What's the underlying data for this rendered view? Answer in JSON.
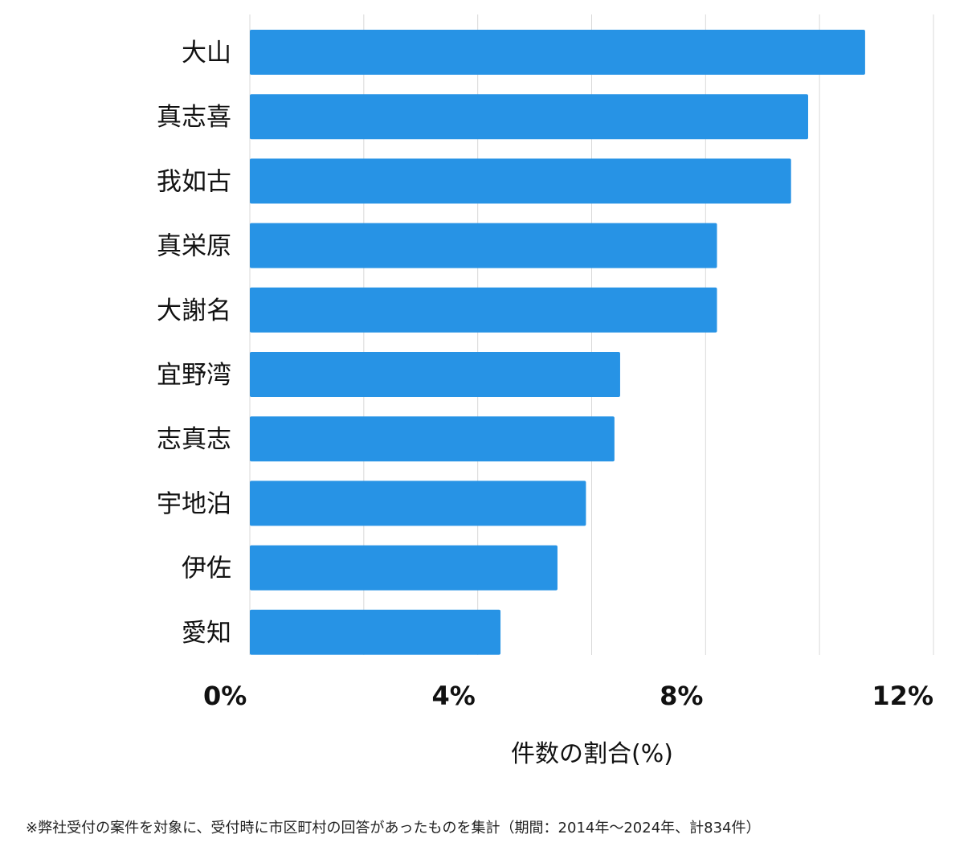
{
  "chart_data": {
    "type": "bar",
    "orientation": "horizontal",
    "categories": [
      "大山",
      "真志喜",
      "我如古",
      "真栄原",
      "大謝名",
      "宜野湾",
      "志真志",
      "宇地泊",
      "伊佐",
      "愛知"
    ],
    "values": [
      10.8,
      9.8,
      9.5,
      8.2,
      8.2,
      6.5,
      6.4,
      5.9,
      5.4,
      4.4
    ],
    "xlim": [
      0,
      12
    ],
    "xticks": [
      0,
      4,
      8,
      12
    ],
    "xtick_labels": [
      "0%",
      "4%",
      "8%",
      "12%"
    ],
    "xlabel": "件数の割合(%)",
    "ylabel": "",
    "grid": true,
    "bar_color": "#2793e5",
    "grid_color": "#d9d9d9"
  },
  "footnote": "※弊社受付の案件を対象に、受付時に市区町村の回答があったものを集計（期間：2014年～2024年、計834件）"
}
